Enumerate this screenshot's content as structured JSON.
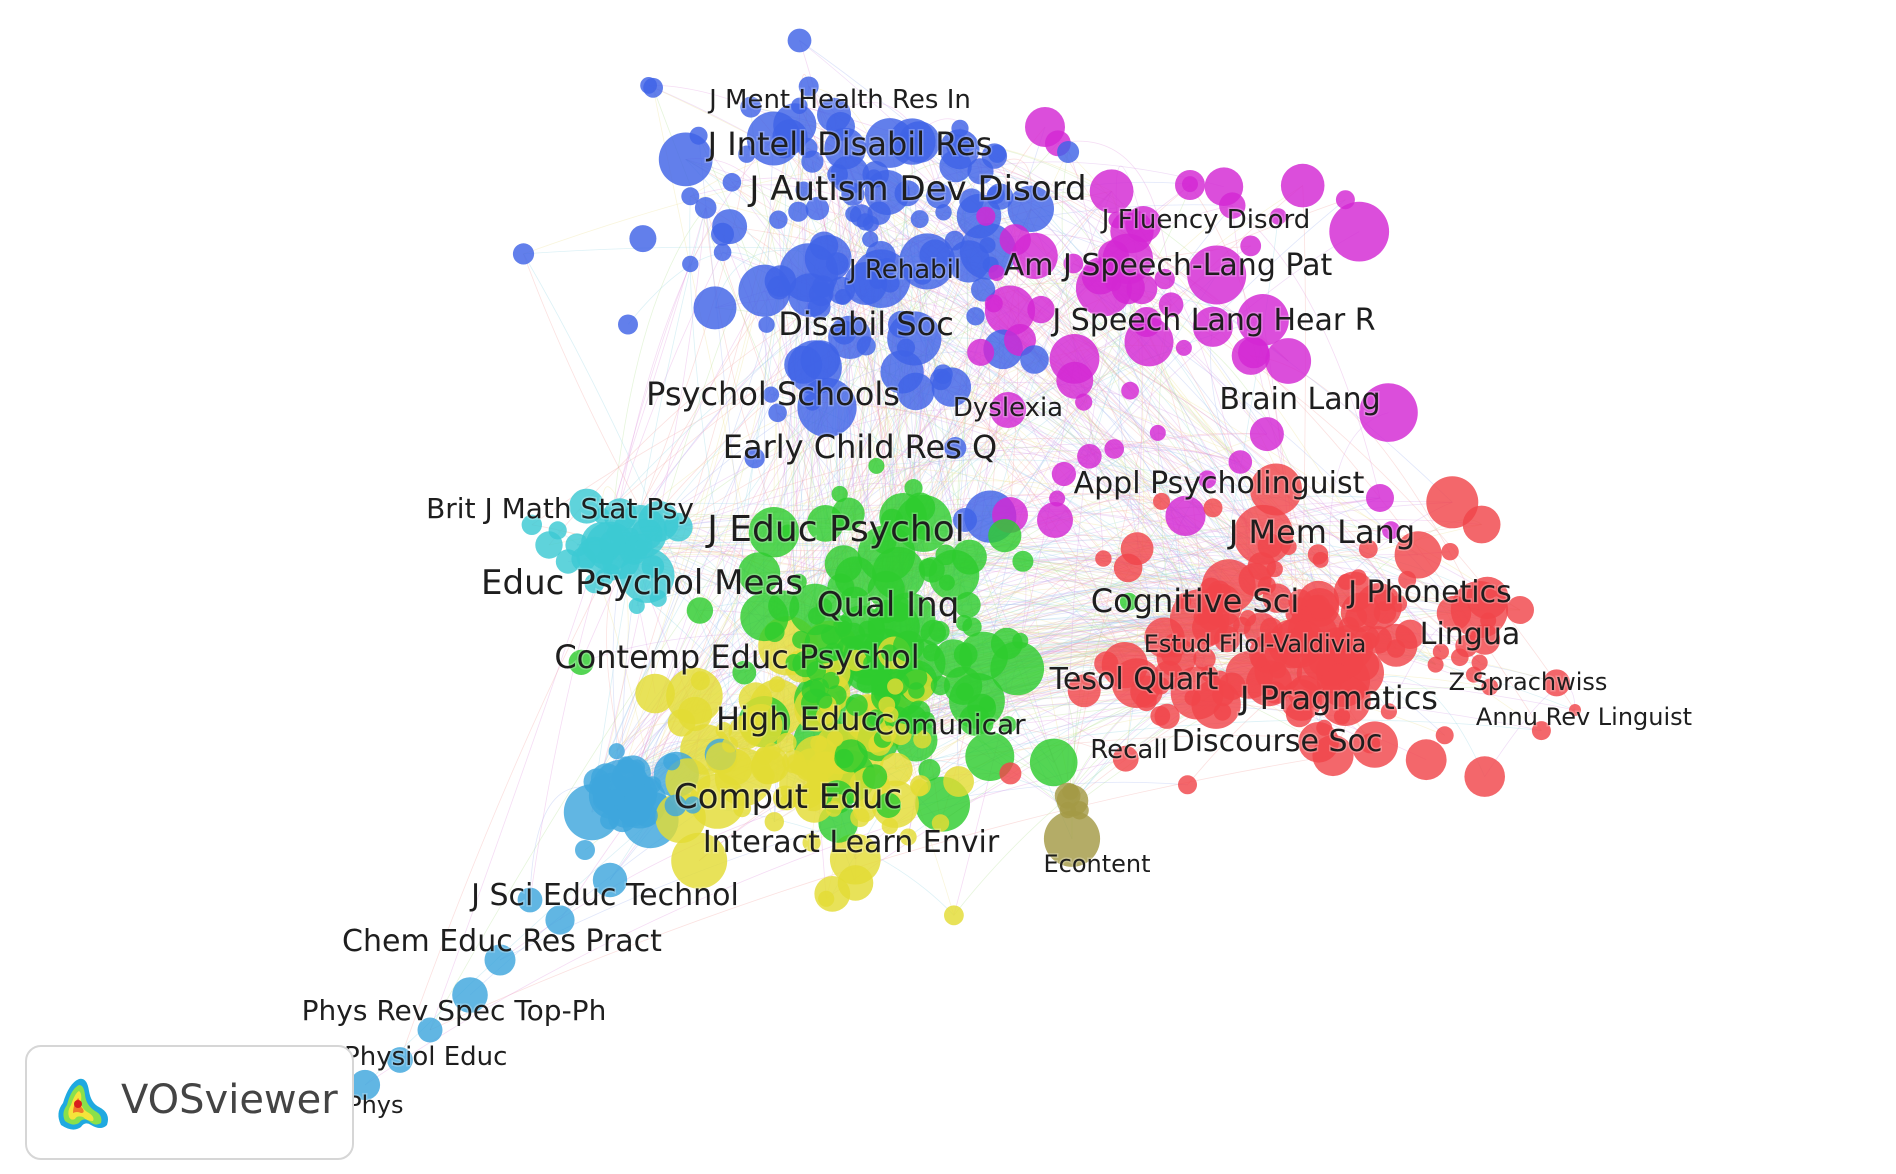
{
  "app": {
    "logo_text": "VOSviewer"
  },
  "colors": {
    "red": "#f0464a",
    "magenta": "#d327d3",
    "blue": "#3f63e6",
    "green": "#2ecc2e",
    "yellow": "#e3dc34",
    "cyan": "#3cc9d3",
    "skyblue": "#3ea6dd",
    "olive": "#a39a46",
    "orange": "#e8a23c",
    "edge_palette": [
      "#e39ce0",
      "#a7b7f0",
      "#9ad8e6",
      "#f3a9a6",
      "#b8e29a",
      "#ede39a",
      "#d7a3e9"
    ]
  },
  "clusters": [
    {
      "id": "red",
      "color": "#f0464a"
    },
    {
      "id": "magenta",
      "color": "#d327d3"
    },
    {
      "id": "blue",
      "color": "#3f63e6"
    },
    {
      "id": "green",
      "color": "#2ecc2e"
    },
    {
      "id": "yellow",
      "color": "#e3dc34"
    },
    {
      "id": "cyan",
      "color": "#3cc9d3"
    },
    {
      "id": "skyblue",
      "color": "#3ea6dd"
    },
    {
      "id": "olive",
      "color": "#a39a46"
    }
  ],
  "labels": [
    {
      "text": "J Ment Health Res In",
      "cluster": "blue"
    },
    {
      "text": "J Intell Disabil Res",
      "cluster": "blue"
    },
    {
      "text": "J Autism Dev Disord",
      "cluster": "blue"
    },
    {
      "text": "J Rehabil",
      "cluster": "blue"
    },
    {
      "text": "Disabil Soc",
      "cluster": "blue"
    },
    {
      "text": "Psychol Schools",
      "cluster": "blue"
    },
    {
      "text": "Early Child Res Q",
      "cluster": "blue"
    },
    {
      "text": "J Fluency Disord",
      "cluster": "magenta"
    },
    {
      "text": "Am J Speech-Lang Pat",
      "cluster": "magenta"
    },
    {
      "text": "J Speech Lang Hear R",
      "cluster": "magenta"
    },
    {
      "text": "Dyslexia",
      "cluster": "magenta"
    },
    {
      "text": "Brain Lang",
      "cluster": "magenta"
    },
    {
      "text": "Appl Psycholinguist",
      "cluster": "magenta"
    },
    {
      "text": "Brit J Math Stat Psy",
      "cluster": "cyan"
    },
    {
      "text": "Educ Psychol Meas",
      "cluster": "cyan"
    },
    {
      "text": "J Educ Psychol",
      "cluster": "green"
    },
    {
      "text": "Qual Inq",
      "cluster": "green"
    },
    {
      "text": "Contemp Educ Psychol",
      "cluster": "green"
    },
    {
      "text": "High Educ",
      "cluster": "green"
    },
    {
      "text": "Comunicar",
      "cluster": "yellow"
    },
    {
      "text": "Comput Educ",
      "cluster": "yellow"
    },
    {
      "text": "Interact Learn Envir",
      "cluster": "yellow"
    },
    {
      "text": "J Mem Lang",
      "cluster": "red"
    },
    {
      "text": "Cognitive Sci",
      "cluster": "red"
    },
    {
      "text": "J Phonetics",
      "cluster": "red"
    },
    {
      "text": "Estud Filol-Valdivia",
      "cluster": "red"
    },
    {
      "text": "Lingua",
      "cluster": "red"
    },
    {
      "text": "Tesol Quart",
      "cluster": "red"
    },
    {
      "text": "J Pragmatics",
      "cluster": "red"
    },
    {
      "text": "Z Sprachwiss",
      "cluster": "red"
    },
    {
      "text": "Annu Rev Linguist",
      "cluster": "red"
    },
    {
      "text": "Recall",
      "cluster": "red"
    },
    {
      "text": "Discourse Soc",
      "cluster": "red"
    },
    {
      "text": "Econtent",
      "cluster": "olive"
    },
    {
      "text": "J Sci Educ Technol",
      "cluster": "skyblue"
    },
    {
      "text": "Chem Educ Res Pract",
      "cluster": "skyblue"
    },
    {
      "text": "Phys Rev Spec Top-Ph",
      "cluster": "skyblue"
    },
    {
      "text": "Adv Physiol Educ",
      "cluster": "skyblue"
    },
    {
      "text": "Eur J Phys",
      "cluster": "skyblue"
    }
  ]
}
